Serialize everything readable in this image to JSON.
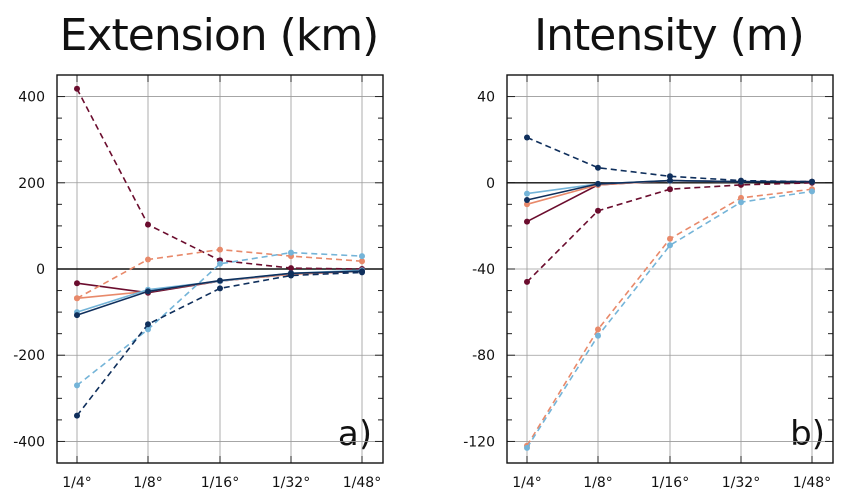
{
  "chart_data": [
    {
      "type": "line",
      "title": "Extension (km)",
      "panel_label": "a)",
      "categories": [
        "1/4°",
        "1/8°",
        "1/16°",
        "1/32°",
        "1/48°"
      ],
      "ylim": [
        -450,
        450
      ],
      "yticks": [
        -400,
        -200,
        0,
        200,
        400
      ],
      "grid": true,
      "series": [
        {
          "color": "#6b0d2e",
          "dash": "solid",
          "values": [
            -33,
            -55,
            -28,
            -12,
            -5
          ]
        },
        {
          "color": "#6b0d2e",
          "dash": "dashed",
          "values": [
            418,
            103,
            20,
            2,
            0
          ]
        },
        {
          "color": "#e8896a",
          "dash": "solid",
          "values": [
            -68,
            -52,
            -28,
            -12,
            -5
          ]
        },
        {
          "color": "#e8896a",
          "dash": "dashed",
          "values": [
            -68,
            22,
            45,
            30,
            18
          ]
        },
        {
          "color": "#74b4d8",
          "dash": "solid",
          "values": [
            -100,
            -48,
            -28,
            -10,
            -3
          ]
        },
        {
          "color": "#74b4d8",
          "dash": "dashed",
          "values": [
            -270,
            -140,
            12,
            38,
            30
          ]
        },
        {
          "color": "#0f2f5c",
          "dash": "solid",
          "values": [
            -107,
            -52,
            -27,
            -10,
            -5
          ]
        },
        {
          "color": "#0f2f5c",
          "dash": "dashed",
          "values": [
            -340,
            -128,
            -45,
            -15,
            -8
          ]
        }
      ]
    },
    {
      "type": "line",
      "title": "Intensity (m)",
      "panel_label": "b)",
      "categories": [
        "1/4°",
        "1/8°",
        "1/16°",
        "1/32°",
        "1/48°"
      ],
      "ylim": [
        -130,
        50
      ],
      "yticks": [
        -120,
        -80,
        -40,
        0,
        40
      ],
      "grid": true,
      "series": [
        {
          "color": "#6b0d2e",
          "dash": "solid",
          "values": [
            -18,
            -1,
            1,
            0.5,
            0.5
          ]
        },
        {
          "color": "#6b0d2e",
          "dash": "dashed",
          "values": [
            -46,
            -13,
            -3,
            -1,
            0
          ]
        },
        {
          "color": "#e8896a",
          "dash": "solid",
          "values": [
            -10,
            -1,
            1,
            0.5,
            0.5
          ]
        },
        {
          "color": "#e8896a",
          "dash": "dashed",
          "values": [
            -122,
            -68,
            -26,
            -7,
            -3
          ]
        },
        {
          "color": "#74b4d8",
          "dash": "solid",
          "values": [
            -5,
            -0.5,
            1,
            0.5,
            0.5
          ]
        },
        {
          "color": "#74b4d8",
          "dash": "dashed",
          "values": [
            -123,
            -71,
            -29,
            -9,
            -4
          ]
        },
        {
          "color": "#0f2f5c",
          "dash": "solid",
          "values": [
            -8,
            -0.5,
            1,
            0.5,
            0.5
          ]
        },
        {
          "color": "#0f2f5c",
          "dash": "dashed",
          "values": [
            21,
            7,
            3,
            1,
            0.5
          ]
        }
      ]
    }
  ]
}
